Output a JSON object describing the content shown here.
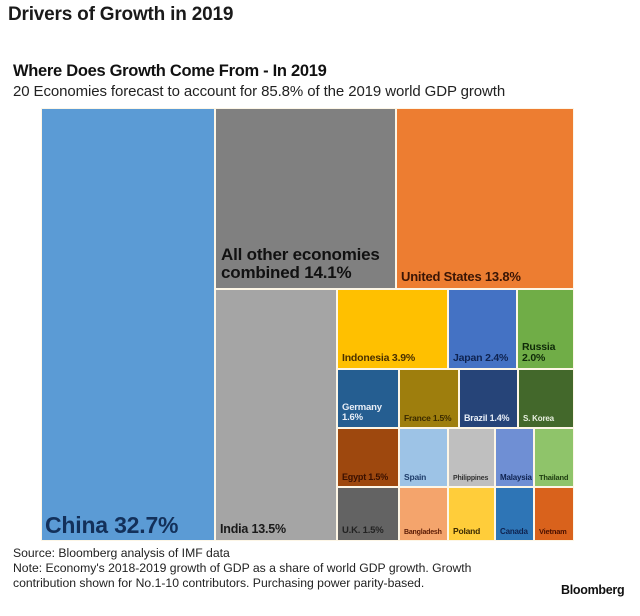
{
  "page_title": "Drivers of Growth in 2019",
  "chart_data": {
    "type": "treemap",
    "title": "Where Does Growth Come From - In 2019",
    "subtitle": "20 Economies forecast to account for 85.8% of the 2019 world GDP growth",
    "unit": "% share of world GDP growth",
    "items": [
      {
        "name": "China",
        "label": "China 32.7%",
        "value": 32.7,
        "color": "#5b9bd5",
        "text_color": "#13305a"
      },
      {
        "name": "All other economies combined",
        "label": "All other economies combined 14.1%",
        "value": 14.1,
        "color": "#808080",
        "text_color": "#111111"
      },
      {
        "name": "United States",
        "label": "United States 13.8%",
        "value": 13.8,
        "color": "#ed7d31",
        "text_color": "#3a1505"
      },
      {
        "name": "India",
        "label": "India 13.5%",
        "value": 13.5,
        "color": "#a5a5a5",
        "text_color": "#1a1a1a"
      },
      {
        "name": "Indonesia",
        "label": "Indonesia 3.9%",
        "value": 3.9,
        "color": "#ffc000",
        "text_color": "#4a3000"
      },
      {
        "name": "Japan",
        "label": "Japan 2.4%",
        "value": 2.4,
        "color": "#4472c4",
        "text_color": "#0f2350"
      },
      {
        "name": "Russia",
        "label": "Russia 2.0%",
        "value": 2.0,
        "color": "#70ad47",
        "text_color": "#0f2a08"
      },
      {
        "name": "Germany",
        "label": "Germany 1.6%",
        "value": 1.6,
        "color": "#255e91",
        "text_color": "#e8eef7"
      },
      {
        "name": "France",
        "label": "France 1.5%",
        "value": 1.5,
        "color": "#9e7e0d",
        "text_color": "#3a2a00"
      },
      {
        "name": "Brazil",
        "label": "Brazil 1.4%",
        "value": 1.4,
        "color": "#264478",
        "text_color": "#e8eef7"
      },
      {
        "name": "S. Korea",
        "label": "S. Korea",
        "value": null,
        "color": "#43682b",
        "text_color": "#e8f0e0"
      },
      {
        "name": "Egypt",
        "label": "Egypt 1.5%",
        "value": 1.5,
        "color": "#9e480e",
        "text_color": "#3a1000"
      },
      {
        "name": "Spain",
        "label": "Spain",
        "value": null,
        "color": "#9dc3e6",
        "text_color": "#1f3d6a"
      },
      {
        "name": "Philippines",
        "label": "Philippines",
        "value": null,
        "color": "#bfbfbf",
        "text_color": "#333333"
      },
      {
        "name": "Malaysia",
        "label": "Malaysia",
        "value": null,
        "color": "#6f8fd4",
        "text_color": "#0f2350"
      },
      {
        "name": "Thailand",
        "label": "Thailand",
        "value": null,
        "color": "#8fc46a",
        "text_color": "#1e3d10"
      },
      {
        "name": "U.K.",
        "label": "U.K. 1.5%",
        "value": 1.5,
        "color": "#636363",
        "text_color": "#222222"
      },
      {
        "name": "Bangladesh",
        "label": "Bangladesh",
        "value": null,
        "color": "#f4a46c",
        "text_color": "#5a1a05"
      },
      {
        "name": "Poland",
        "label": "Poland",
        "value": null,
        "color": "#ffcd3a",
        "text_color": "#3a2a00"
      },
      {
        "name": "Canada",
        "label": "Canada",
        "value": null,
        "color": "#2e75b6",
        "text_color": "#0f2350"
      },
      {
        "name": "Vietnam",
        "label": "Vietnam",
        "value": null,
        "color": "#d9621c",
        "text_color": "#4a1000"
      }
    ]
  },
  "notes": {
    "source": "Source: Bloomberg analysis of IMF data",
    "note_line1": "Note: Economy's 2018-2019 growth of GDP as a share of world GDP growth. Growth",
    "note_line2": "contribution shown for No.1-10 contributors. Purchasing power parity-based."
  },
  "brand": "Bloomberg"
}
